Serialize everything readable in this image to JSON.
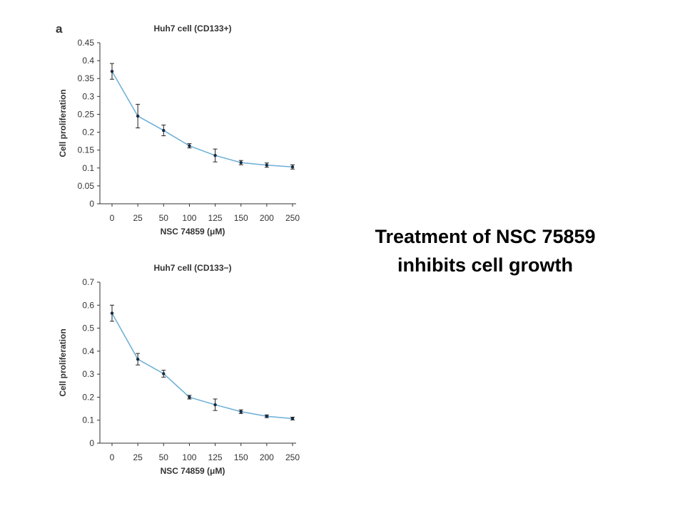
{
  "caption": {
    "line1": "Treatment of NSC 75859",
    "line2": "inhibits cell growth"
  },
  "colors": {
    "line": "#6aaed6",
    "marker": "#1a2a40",
    "axis": "#333333",
    "text": "#333333"
  },
  "chart_data": [
    {
      "type": "line",
      "panel_label": "a",
      "title": "Huh7 cell (CD133+)",
      "xlabel": "NSC 74859 (μM)",
      "ylabel": "Cell proliferation",
      "categories": [
        "0",
        "25",
        "50",
        "100",
        "125",
        "150",
        "200",
        "250"
      ],
      "ylim": [
        0,
        0.45
      ],
      "yticks": [
        "0",
        "0.05",
        "0.1",
        "0.15",
        "0.2",
        "0.25",
        "0.3",
        "0.35",
        "0.4",
        "0.45"
      ],
      "series": [
        {
          "values": [
            0.37,
            0.245,
            0.205,
            0.162,
            0.135,
            0.115,
            0.108,
            0.103
          ],
          "errors": [
            0.022,
            0.033,
            0.015,
            0.006,
            0.018,
            0.006,
            0.006,
            0.006
          ]
        }
      ],
      "grid": false
    },
    {
      "type": "line",
      "panel_label": "",
      "title": "Huh7 cell (CD133−)",
      "xlabel": "NSC 74859 (μM)",
      "ylabel": "Cell proliferation",
      "categories": [
        "0",
        "25",
        "50",
        "100",
        "125",
        "150",
        "200",
        "250"
      ],
      "ylim": [
        0,
        0.7
      ],
      "yticks": [
        "0",
        "0.1",
        "0.2",
        "0.3",
        "0.4",
        "0.5",
        "0.6",
        "0.7"
      ],
      "series": [
        {
          "values": [
            0.565,
            0.365,
            0.302,
            0.2,
            0.167,
            0.137,
            0.117,
            0.107
          ],
          "errors": [
            0.035,
            0.025,
            0.015,
            0.008,
            0.025,
            0.008,
            0.006,
            0.006
          ]
        }
      ],
      "grid": false
    }
  ]
}
